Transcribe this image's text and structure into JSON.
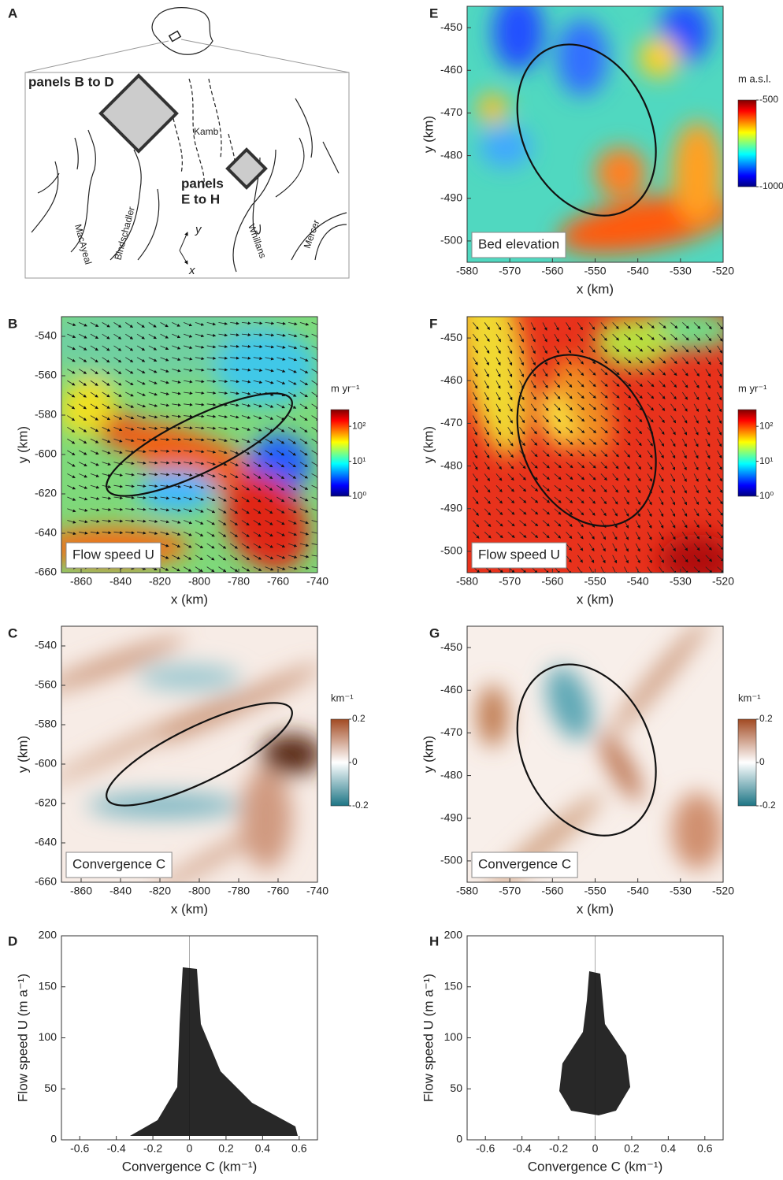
{
  "panel_a": {
    "label": "A",
    "box_b_label": "panels B to D",
    "box_e_label_1": "panels",
    "box_e_label_2": "E to H",
    "streams": [
      "Kamb",
      "MacAyeal",
      "Bindschadler",
      "Whillans",
      "Mercer"
    ],
    "axis_y": "y",
    "axis_x": "x"
  },
  "chart_data": [
    {
      "label": "B",
      "type": "heatmap",
      "xlabel": "x (km)",
      "ylabel": "y (km)",
      "xlim": [
        -870,
        -740
      ],
      "ylim": [
        -660,
        -530
      ],
      "xticks": [
        -860,
        -840,
        -820,
        -800,
        -780,
        -760,
        -740
      ],
      "yticks": [
        -660,
        -640,
        -620,
        -600,
        -580,
        -560,
        -540
      ],
      "inset_label": "Flow speed U",
      "colorbar": {
        "title": "m yr⁻¹",
        "log": true,
        "clim": [
          1,
          300
        ],
        "colormap": "jet",
        "ticks": [
          {
            "value": 100,
            "label": "10²"
          },
          {
            "value": 10,
            "label": "10¹"
          },
          {
            "value": 1,
            "label": "10⁰"
          }
        ]
      }
    },
    {
      "label": "C",
      "type": "heatmap",
      "xlabel": "x (km)",
      "ylabel": "y (km)",
      "xlim": [
        -870,
        -740
      ],
      "ylim": [
        -660,
        -530
      ],
      "xticks": [
        -860,
        -840,
        -820,
        -800,
        -780,
        -760,
        -740
      ],
      "yticks": [
        -660,
        -640,
        -620,
        -600,
        -580,
        -560,
        -540
      ],
      "inset_label": "Convergence C",
      "colorbar": {
        "title": "km⁻¹",
        "log": false,
        "clim": [
          -0.2,
          0.2
        ],
        "colormap": "diverging",
        "ticks": [
          0.2,
          0,
          -0.2
        ]
      }
    },
    {
      "label": "D",
      "type": "scatter",
      "xlabel": "Convergence C (km⁻¹)",
      "ylabel": "Flow speed U (m a⁻¹)",
      "xlim": [
        -0.7,
        0.7
      ],
      "ylim": [
        0,
        200
      ],
      "xticks": [
        -0.6,
        -0.4,
        -0.2,
        0,
        0.2,
        0.4,
        0.6
      ],
      "yticks": [
        0,
        50,
        100,
        150,
        200
      ]
    },
    {
      "label": "E",
      "type": "heatmap",
      "xlabel": "x (km)",
      "ylabel": "y (km)",
      "xlim": [
        -580,
        -520
      ],
      "ylim": [
        -505,
        -445
      ],
      "xticks": [
        -580,
        -570,
        -560,
        -550,
        -540,
        -530,
        -520
      ],
      "yticks": [
        -500,
        -490,
        -480,
        -470,
        -460,
        -450
      ],
      "inset_label": "Bed elevation",
      "colorbar": {
        "title": "m a.s.l.",
        "log": false,
        "clim": [
          -1000,
          -500
        ],
        "colormap": "jet",
        "ticks": [
          -500,
          -1000
        ]
      }
    },
    {
      "label": "F",
      "type": "heatmap",
      "xlabel": "x (km)",
      "ylabel": "y (km)",
      "xlim": [
        -580,
        -520
      ],
      "ylim": [
        -505,
        -445
      ],
      "xticks": [
        -580,
        -570,
        -560,
        -550,
        -540,
        -530,
        -520
      ],
      "yticks": [
        -500,
        -490,
        -480,
        -470,
        -460,
        -450
      ],
      "inset_label": "Flow speed U",
      "colorbar": {
        "title": "m yr⁻¹",
        "log": true,
        "clim": [
          1,
          300
        ],
        "colormap": "jet",
        "ticks": [
          {
            "value": 100,
            "label": "10²"
          },
          {
            "value": 10,
            "label": "10¹"
          },
          {
            "value": 1,
            "label": "10⁰"
          }
        ]
      }
    },
    {
      "label": "G",
      "type": "heatmap",
      "xlabel": "x (km)",
      "ylabel": "y (km)",
      "xlim": [
        -580,
        -520
      ],
      "ylim": [
        -505,
        -445
      ],
      "xticks": [
        -580,
        -570,
        -560,
        -550,
        -540,
        -530,
        -520
      ],
      "yticks": [
        -500,
        -490,
        -480,
        -470,
        -460,
        -450
      ],
      "inset_label": "Convergence C",
      "colorbar": {
        "title": "km⁻¹",
        "log": false,
        "clim": [
          -0.2,
          0.2
        ],
        "colormap": "diverging",
        "ticks": [
          0.2,
          0,
          -0.2
        ]
      }
    },
    {
      "label": "H",
      "type": "scatter",
      "xlabel": "Convergence C (km⁻¹)",
      "ylabel": "Flow speed U (m a⁻¹)",
      "xlim": [
        -0.7,
        0.7
      ],
      "ylim": [
        0,
        200
      ],
      "xticks": [
        -0.6,
        -0.4,
        -0.2,
        0,
        0.2,
        0.4,
        0.6
      ],
      "yticks": [
        0,
        50,
        100,
        150,
        200
      ]
    }
  ]
}
